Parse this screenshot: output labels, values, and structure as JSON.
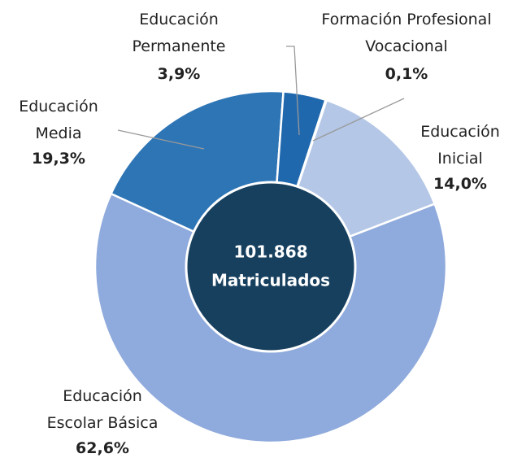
{
  "chart_data": {
    "type": "donut",
    "categories": [
      "Formación Profesional\nVocacional",
      "Educación\nInicial",
      "Educación\nEscolar Básica",
      "Educación\nMedia",
      "Educación\nPermanente"
    ],
    "values": [
      0.1,
      14.0,
      62.6,
      19.3,
      3.9
    ],
    "value_labels": [
      "0,1%",
      "14,0%",
      "62,6%",
      "19,3%",
      "3,9%"
    ],
    "colors": [
      "#2e75b6",
      "#b4c7e7",
      "#8faadc",
      "#2e75b6",
      "#2068ad"
    ],
    "center_text": [
      "101.868",
      "Matriculados"
    ],
    "center_color": "#17405f"
  }
}
